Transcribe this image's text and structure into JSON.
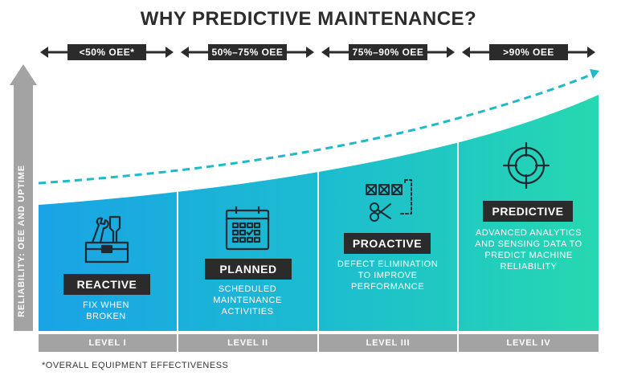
{
  "title": "WHY PREDICTIVE MAINTENANCE?",
  "y_axis_label": "RELIABILITY: OEE AND UPTIME",
  "ranges": [
    "<50% OEE*",
    "50%–75% OEE",
    "75%–90% OEE",
    ">90% OEE"
  ],
  "stages": [
    {
      "name": "REACTIVE",
      "description": "FIX WHEN\nBROKEN",
      "level": "LEVEL I",
      "icon": "toolbox-icon"
    },
    {
      "name": "PLANNED",
      "description": "SCHEDULED\nMAINTENANCE\nACTIVITIES",
      "level": "LEVEL II",
      "icon": "calendar-icon"
    },
    {
      "name": "PROACTIVE",
      "description": "DEFECT ELIMINATION\nTO IMPROVE\nPERFORMANCE",
      "level": "LEVEL III",
      "icon": "scissors-icon"
    },
    {
      "name": "PREDICTIVE",
      "description": "ADVANCED ANALYTICS\nAND SENSING DATA TO\nPREDICT MACHINE\nRELIABILITY",
      "level": "LEVEL IV",
      "icon": "target-icon"
    }
  ],
  "footnote": "*OVERALL EQUIPMENT EFFECTIVENESS",
  "colors": {
    "dark": "#2b2b2b",
    "gray": "#a3a3a3",
    "blue": "#1ba6e3",
    "teal": "#24d3b4",
    "dashed_line": "#1fb9c9"
  }
}
